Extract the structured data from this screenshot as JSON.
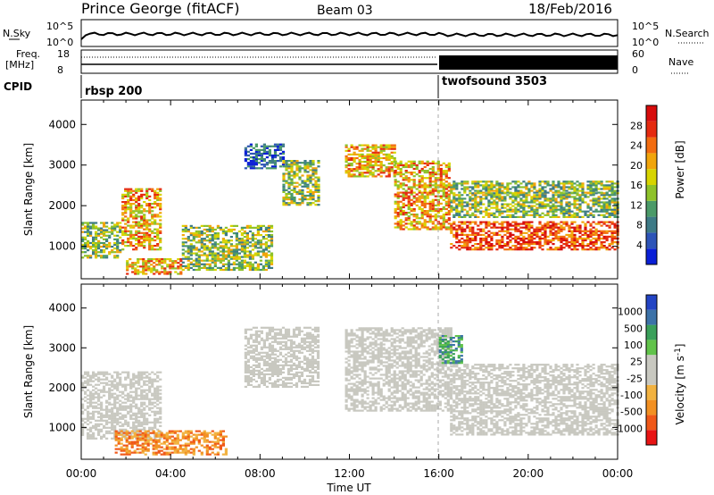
{
  "header": {
    "station": "Prince George (fitACF)",
    "beam": "Beam 03",
    "date": "18/Feb/2016"
  },
  "top_panels": {
    "nsky_label": "N.Sky",
    "nsearch_label": "N.Search",
    "noise_ticks_left": [
      "10^5",
      "10^0"
    ],
    "noise_ticks_right": [
      "10^5",
      "10^0"
    ],
    "freq_label_1": "Freq.",
    "freq_label_2": "[MHz]",
    "freq_ticks": [
      "18",
      "8"
    ],
    "nave_label": "Nave",
    "nave_ticks": [
      "60",
      "0"
    ],
    "cpid_label": "CPID",
    "cpid_1": "rbsp 200",
    "cpid_2": "twofsound 3503"
  },
  "colors": {
    "power": [
      "#0a1fd6",
      "#2d54b8",
      "#3d7a86",
      "#4b9a68",
      "#8ec22a",
      "#d7d400",
      "#f1a50b",
      "#f26c10",
      "#e52a10",
      "#d70c0c"
    ],
    "velocity": [
      "#e81414",
      "#f05818",
      "#f29022",
      "#f2b240",
      "#c8c8c0",
      "#c8c8c0",
      "#61c34a",
      "#3aa05a",
      "#3c72a8",
      "#2344c4"
    ]
  },
  "chart_data": [
    {
      "type": "heatmap",
      "title": "",
      "ylabel": "Slant Range [km]",
      "xlabel": "",
      "ylim": [
        200,
        4600
      ],
      "xlim": [
        "00:00",
        "24:00"
      ],
      "y_ticks": [
        "1000",
        "2000",
        "3000",
        "4000"
      ],
      "x_ticks": [
        "00:00",
        "04:00",
        "08:00",
        "12:00",
        "16:00",
        "20:00",
        "00:00"
      ],
      "colorbar": {
        "label": "Power [dB]",
        "range": [
          0,
          32
        ],
        "ticks": [
          "4",
          "8",
          "12",
          "16",
          "20",
          "24",
          "28"
        ]
      },
      "regions": [
        {
          "t_start": 0.0,
          "t_end": 1.8,
          "r_low": 700,
          "r_high": 1600,
          "level": "mid"
        },
        {
          "t_start": 1.8,
          "t_end": 3.6,
          "r_low": 900,
          "r_high": 2400,
          "level": "high"
        },
        {
          "t_start": 2.0,
          "t_end": 4.5,
          "r_low": 300,
          "r_high": 700,
          "level": "high"
        },
        {
          "t_start": 4.5,
          "t_end": 8.5,
          "r_low": 400,
          "r_high": 1500,
          "level": "mid"
        },
        {
          "t_start": 7.3,
          "t_end": 9.0,
          "r_low": 2900,
          "r_high": 3500,
          "level": "low"
        },
        {
          "t_start": 9.0,
          "t_end": 10.6,
          "r_low": 2000,
          "r_high": 3100,
          "level": "mid"
        },
        {
          "t_start": 11.8,
          "t_end": 14.0,
          "r_low": 2700,
          "r_high": 3500,
          "level": "high"
        },
        {
          "t_start": 14.0,
          "t_end": 16.5,
          "r_low": 1400,
          "r_high": 3100,
          "level": "high"
        },
        {
          "t_start": 16.5,
          "t_end": 24.0,
          "r_low": 900,
          "r_high": 1600,
          "level": "max"
        },
        {
          "t_start": 16.5,
          "t_end": 24.0,
          "r_low": 1700,
          "r_high": 2300,
          "level": "mid"
        },
        {
          "t_start": 16.5,
          "t_end": 24.0,
          "r_low": 2300,
          "r_high": 2600,
          "level": "mid"
        }
      ]
    },
    {
      "type": "heatmap",
      "title": "",
      "ylabel": "Slant Range [km]",
      "xlabel": "Time UT",
      "ylim": [
        200,
        4600
      ],
      "xlim": [
        "00:00",
        "24:00"
      ],
      "y_ticks": [
        "1000",
        "2000",
        "3000",
        "4000"
      ],
      "x_ticks": [
        "00:00",
        "04:00",
        "08:00",
        "12:00",
        "16:00",
        "20:00",
        "00:00"
      ],
      "colorbar": {
        "label": "Velocity [m s",
        "label_sup": "-1",
        "label_end": "]",
        "ticks": [
          "1000",
          "500",
          "100",
          "25",
          "-25",
          "-100",
          "-500",
          "-1000"
        ]
      },
      "regions": [
        {
          "t_start": 0.0,
          "t_end": 3.6,
          "r_low": 700,
          "r_high": 2400,
          "level": "ground"
        },
        {
          "t_start": 1.5,
          "t_end": 6.5,
          "r_low": 300,
          "r_high": 900,
          "level": "neg"
        },
        {
          "t_start": 7.3,
          "t_end": 10.6,
          "r_low": 2000,
          "r_high": 3500,
          "level": "ground"
        },
        {
          "t_start": 11.8,
          "t_end": 16.5,
          "r_low": 1400,
          "r_high": 3500,
          "level": "ground"
        },
        {
          "t_start": 16.5,
          "t_end": 24.0,
          "r_low": 800,
          "r_high": 2600,
          "level": "ground"
        },
        {
          "t_start": 16.0,
          "t_end": 17.0,
          "r_low": 2600,
          "r_high": 3300,
          "level": "pos"
        }
      ]
    }
  ]
}
